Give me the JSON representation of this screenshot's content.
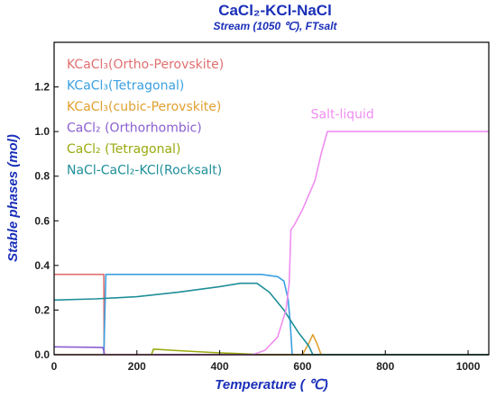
{
  "chart_data": {
    "type": "line",
    "title": "CaCl₂-KCl-NaCl",
    "subtitle": "Stream (1050 ℃), FTsalt",
    "xlabel": "Temperature ( ℃)",
    "ylabel": "Stable phases (mol)",
    "xlim": [
      0,
      1050
    ],
    "ylim": [
      0,
      1.4
    ],
    "xticks": [
      "0",
      "200",
      "400",
      "600",
      "800",
      "1000"
    ],
    "yticks": [
      "0.0",
      "0.2",
      "0.4",
      "0.6",
      "0.8",
      "1.0",
      "1.2"
    ],
    "legend_placement": "top-left",
    "series": [
      {
        "name": "KCaCl₃(Ortho-Perovskite)",
        "color": "#e07070",
        "points": [
          [
            0,
            0.36
          ],
          [
            120,
            0.36
          ],
          [
            121,
            0.0
          ],
          [
            1050,
            0.0
          ]
        ]
      },
      {
        "name": "KCaCl₃(Tetragonal)",
        "color": "#3aa0e0",
        "points": [
          [
            0,
            0.0
          ],
          [
            120,
            0.0
          ],
          [
            125,
            0.36
          ],
          [
            500,
            0.36
          ],
          [
            540,
            0.35
          ],
          [
            555,
            0.33
          ],
          [
            565,
            0.25
          ],
          [
            570,
            0.15
          ],
          [
            575,
            0.0
          ],
          [
            1050,
            0.0
          ]
        ]
      },
      {
        "name": "KCaCl₃(cubic-Perovskite)",
        "color": "#e0a030",
        "points": [
          [
            0,
            0.0
          ],
          [
            560,
            0.0
          ],
          [
            575,
            0.0
          ],
          [
            600,
            0.0
          ],
          [
            615,
            0.05
          ],
          [
            625,
            0.09
          ],
          [
            635,
            0.05
          ],
          [
            645,
            0.0
          ],
          [
            1050,
            0.0
          ]
        ]
      },
      {
        "name": "CaCl₂ (Orthorhombic)",
        "color": "#8a5fd0",
        "points": [
          [
            0,
            0.035
          ],
          [
            100,
            0.033
          ],
          [
            118,
            0.032
          ],
          [
            122,
            0.0
          ],
          [
            1050,
            0.0
          ]
        ]
      },
      {
        "name": "CaCl₂ (Tetragonal)",
        "color": "#9aaa10",
        "points": [
          [
            0,
            0.0
          ],
          [
            235,
            0.0
          ],
          [
            240,
            0.025
          ],
          [
            300,
            0.018
          ],
          [
            380,
            0.01
          ],
          [
            470,
            0.003
          ],
          [
            500,
            0.0
          ],
          [
            1050,
            0.0
          ]
        ]
      },
      {
        "name": "NaCl-CaCl₂-KCl(Rocksalt)",
        "color": "#1f8f98",
        "points": [
          [
            0,
            0.245
          ],
          [
            100,
            0.25
          ],
          [
            200,
            0.26
          ],
          [
            300,
            0.28
          ],
          [
            400,
            0.305
          ],
          [
            450,
            0.32
          ],
          [
            490,
            0.32
          ],
          [
            520,
            0.28
          ],
          [
            555,
            0.2
          ],
          [
            590,
            0.1
          ],
          [
            615,
            0.04
          ],
          [
            625,
            0.0
          ],
          [
            1050,
            0.0
          ]
        ]
      },
      {
        "name": "Salt-liquid",
        "color": "#f08ef0",
        "points": [
          [
            0,
            0.0
          ],
          [
            480,
            0.0
          ],
          [
            510,
            0.02
          ],
          [
            540,
            0.08
          ],
          [
            560,
            0.2
          ],
          [
            568,
            0.32
          ],
          [
            572,
            0.56
          ],
          [
            580,
            0.58
          ],
          [
            600,
            0.65
          ],
          [
            630,
            0.78
          ],
          [
            645,
            0.9
          ],
          [
            660,
            1.0
          ],
          [
            1050,
            1.0
          ]
        ]
      }
    ],
    "annotations": [
      {
        "text": "Salt-liquid",
        "color": "#f08ef0",
        "x": 620,
        "y": 1.06
      }
    ]
  }
}
